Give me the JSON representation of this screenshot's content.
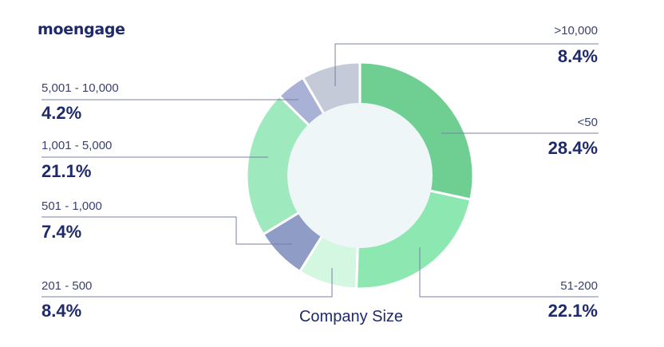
{
  "brand": {
    "logo_text": "moengage"
  },
  "chart_data": {
    "type": "pie",
    "title": "Company Size",
    "categories": [
      "<50",
      "51-200",
      "201 - 500",
      "501 - 1,000",
      "1,001 - 5,000",
      "5,001 - 10,000",
      ">10,000"
    ],
    "values": [
      28.4,
      22.1,
      8.4,
      7.4,
      21.1,
      4.2,
      8.4
    ],
    "value_labels": [
      "28.4%",
      "22.1%",
      "8.4%",
      "7.4%",
      "21.1%",
      "4.2%",
      "8.4%"
    ],
    "colors": [
      "#6fcf93",
      "#8ce8b0",
      "#d4f7e2",
      "#8f9cc6",
      "#9ee9be",
      "#aab1d6",
      "#c5cad8"
    ],
    "center_color": "#eef6f8",
    "style": "donut",
    "legend": "none"
  }
}
